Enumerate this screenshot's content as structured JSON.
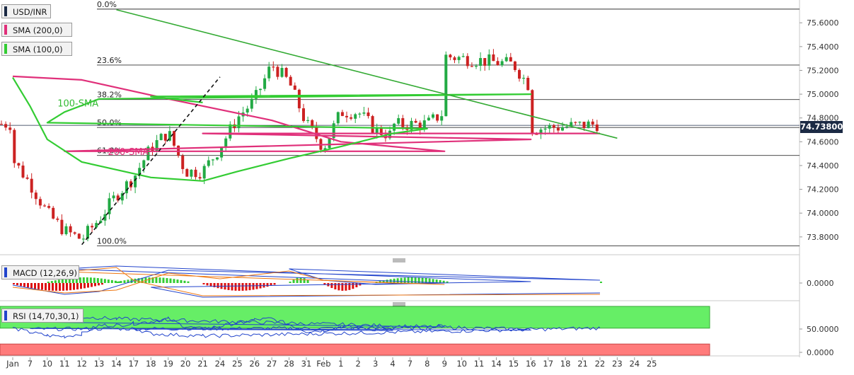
{
  "panels": {
    "price": {
      "symbol": "USD/INR",
      "legend": [
        {
          "label": "SMA (200,0)",
          "color": "#e0307a"
        },
        {
          "label": "SMA (100,0)",
          "color": "#33cc33"
        }
      ],
      "current_price": "74.73800",
      "ma_labels": {
        "sma100": "100-SMA",
        "sma200": "200-SMA"
      }
    },
    "macd": {
      "title": "MACD (12,26,9)",
      "tick": "0.0000"
    },
    "rsi": {
      "title": "RSI (14,70,30,1)",
      "ticks": [
        "50.0000",
        "0.0000"
      ]
    }
  },
  "chart_data": [
    {
      "type": "candlestick",
      "title": "USD/INR",
      "ylim": [
        73.68,
        75.75
      ],
      "y_ticks": [
        "75.6000",
        "75.4000",
        "75.2000",
        "75.0000",
        "74.8000",
        "74.6000",
        "74.4000",
        "74.2000",
        "74.0000",
        "73.8000"
      ],
      "x_ticks": [
        "Jan",
        "7",
        "10",
        "11",
        "12",
        "13",
        "14",
        "17",
        "18",
        "19",
        "20",
        "21",
        "24",
        "25",
        "26",
        "27",
        "28",
        "31",
        "Feb",
        "1",
        "2",
        "3",
        "4",
        "7",
        "8",
        "9",
        "10",
        "11",
        "14",
        "15",
        "16",
        "17",
        "18",
        "21",
        "22",
        "23",
        "24",
        "25"
      ],
      "fibonacci": [
        {
          "label": "0.0%",
          "value": 75.715
        },
        {
          "label": "23.6%",
          "value": 75.245
        },
        {
          "label": "38.2%",
          "value": 74.955
        },
        {
          "label": "50.0%",
          "value": 74.72
        },
        {
          "label": "61.8%",
          "value": 74.485
        },
        {
          "label": "100.0%",
          "value": 73.725
        }
      ],
      "current_price": 74.738,
      "trendlines": [
        {
          "name": "support",
          "style": "dashed",
          "from": [
            "12",
            73.735
          ],
          "to": [
            "24",
            75.145
          ]
        },
        {
          "name": "resistance",
          "style": "solid",
          "from": [
            "14",
            75.71
          ],
          "to": [
            "23",
            74.63
          ]
        }
      ],
      "series": [
        {
          "name": "200-SMA",
          "color": "#e0307a",
          "points": [
            [
              "Jan",
              75.15
            ],
            [
              "12",
              75.12
            ],
            [
              "19",
              74.96
            ],
            [
              "27",
              74.78
            ],
            [
              "1",
              74.6
            ],
            [
              "4",
              74.56
            ],
            [
              "9",
              74.52
            ],
            [
              "11",
              74.52
            ],
            [
              "16",
              74.62
            ],
            [
              "21",
              74.67
            ],
            [
              "22",
              74.67
            ]
          ]
        },
        {
          "name": "100-SMA",
          "color": "#33cc33",
          "points": [
            [
              "Jan",
              75.14
            ],
            [
              "7",
              74.9
            ],
            [
              "10",
              74.62
            ],
            [
              "12",
              74.43
            ],
            [
              "18",
              74.3
            ],
            [
              "21",
              74.27
            ],
            [
              "25",
              74.35
            ],
            [
              "28",
              74.46
            ],
            [
              "1",
              74.56
            ],
            [
              "4",
              74.67
            ],
            [
              "8",
              74.71
            ],
            [
              "10",
              74.76
            ],
            [
              "11",
              74.85
            ],
            [
              "13",
              74.96
            ],
            [
              "16",
              75.0
            ],
            [
              "18",
              74.98
            ],
            [
              "21",
              74.93
            ]
          ]
        }
      ]
    },
    {
      "type": "histogram",
      "title": "MACD (12,26,9)",
      "y_ticks": [
        "0.0000"
      ],
      "histogram": [
        {
          "from": "Jan",
          "to": "13",
          "sign": "negative"
        },
        {
          "from": "14",
          "to": "20",
          "sign": "positive"
        },
        {
          "from": "21",
          "to": "27",
          "sign": "negative"
        },
        {
          "from": "28",
          "to": "31",
          "sign": "positive"
        },
        {
          "from": "Feb",
          "to": "2",
          "sign": "negative"
        },
        {
          "from": "3",
          "to": "9",
          "sign": "positive"
        },
        {
          "from": "10",
          "to": "14",
          "sign": "positive"
        },
        {
          "from": "15",
          "to": "21",
          "sign": "negative"
        },
        {
          "from": "22",
          "to": "22",
          "sign": "positive"
        }
      ]
    },
    {
      "type": "line",
      "title": "RSI (14,70,30,1)",
      "ylim": [
        0,
        100
      ],
      "y_ticks": [
        "50.0000",
        "0.0000"
      ],
      "levels": [
        70,
        30
      ],
      "series": [
        {
          "name": "RSI",
          "color": "#2244cc",
          "points": [
            [
              "Jan",
              52
            ],
            [
              "7",
              43
            ],
            [
              "10",
              36
            ],
            [
              "11",
              34
            ],
            [
              "12",
              40
            ],
            [
              "13",
              58
            ],
            [
              "14",
              58
            ],
            [
              "17",
              62
            ],
            [
              "18",
              66
            ],
            [
              "19",
              72
            ],
            [
              "20",
              55
            ],
            [
              "21",
              50
            ],
            [
              "24",
              56
            ],
            [
              "25",
              63
            ],
            [
              "26",
              70
            ],
            [
              "27",
              72
            ],
            [
              "28",
              60
            ],
            [
              "31",
              45
            ],
            [
              "Feb",
              47
            ],
            [
              "1",
              55
            ],
            [
              "2",
              53
            ],
            [
              "3",
              49
            ],
            [
              "4",
              48
            ],
            [
              "7",
              50
            ],
            [
              "8",
              52
            ],
            [
              "9",
              58
            ],
            [
              "10",
              66
            ],
            [
              "11",
              77
            ],
            [
              "13",
              74
            ],
            [
              "14",
              72
            ],
            [
              "15",
              50
            ],
            [
              "16",
              48
            ],
            [
              "17",
              52
            ],
            [
              "18",
              40
            ],
            [
              "21",
              35
            ],
            [
              "22",
              52
            ]
          ]
        }
      ]
    }
  ]
}
